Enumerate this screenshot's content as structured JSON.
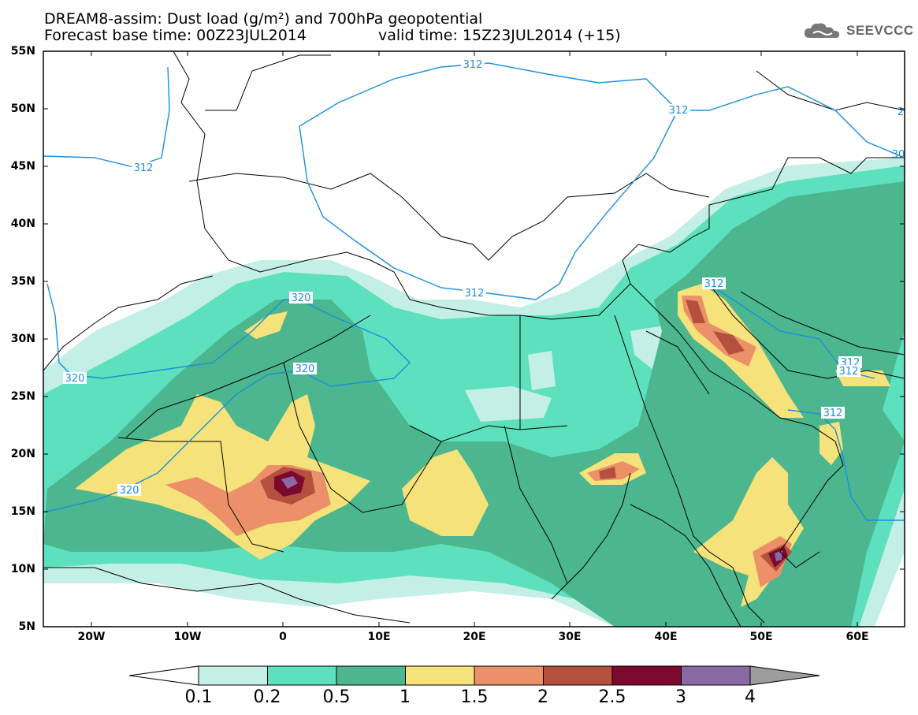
{
  "header": {
    "title_line1": "DREAM8-assim: Dust load (g/m²) and 700hPa geopotential",
    "title_line2a": "Forecast base time: 00Z23JUL2014",
    "title_line2b": "valid time: 15Z23JUL2014 (+15)",
    "logo_text": "SEEVCCC",
    "logo_icon": "cloud-icon"
  },
  "map": {
    "lat_labels": [
      "55N",
      "50N",
      "45N",
      "40N",
      "35N",
      "30N",
      "25N",
      "20N",
      "15N",
      "10N",
      "5N"
    ],
    "lon_labels": [
      "20W",
      "10W",
      "0",
      "10E",
      "20E",
      "30E",
      "40E",
      "50E",
      "60E"
    ],
    "contour_labels": [
      "312",
      "312",
      "312",
      "312",
      "312",
      "312",
      "312",
      "312",
      "320",
      "320",
      "320",
      "320",
      "30",
      "2"
    ]
  },
  "colorbar": {
    "levels": [
      "0.1",
      "0.2",
      "0.5",
      "1",
      "1.5",
      "2",
      "2.5",
      "3",
      "4"
    ],
    "colors": [
      "#c3efe6",
      "#5de0be",
      "#4cb68e",
      "#f6e27a",
      "#eb9068",
      "#b3503e",
      "#7c0a2f",
      "#8a6aa4",
      "#9c9c9c"
    ]
  }
}
